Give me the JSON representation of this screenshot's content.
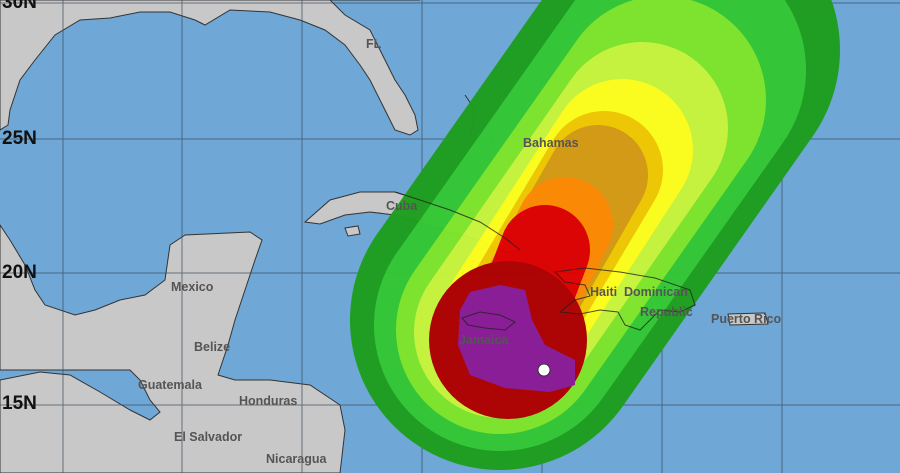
{
  "map": {
    "latitude_labels": [
      "30N",
      "25N",
      "20N",
      "15N"
    ],
    "place_labels": {
      "fl": "FL",
      "bahamas": "Bahamas",
      "cuba": "Cuba",
      "mexico": "Mexico",
      "belize": "Belize",
      "guatemala": "Guatemala",
      "honduras": "Honduras",
      "el_salvador": "El Salvador",
      "nicaragua": "Nicaragua",
      "jamaica": "Jamaica",
      "haiti": "Haiti",
      "dominican_republic_1": "Dominican",
      "dominican_republic_2": "Republic",
      "puerto_rico": "Puerto Rico"
    },
    "colors": {
      "ocean": "#6fa7d6",
      "land": "#c8c8c8",
      "probability_bands": [
        "#1e9e1e",
        "#33c833",
        "#7fe52a",
        "#c8f53a",
        "#ffff1a",
        "#f2c800",
        "#d69a10",
        "#ff8a00",
        "#e00000",
        "#b00000",
        "#8a1e96"
      ],
      "storm_center": "#ffffff"
    }
  }
}
